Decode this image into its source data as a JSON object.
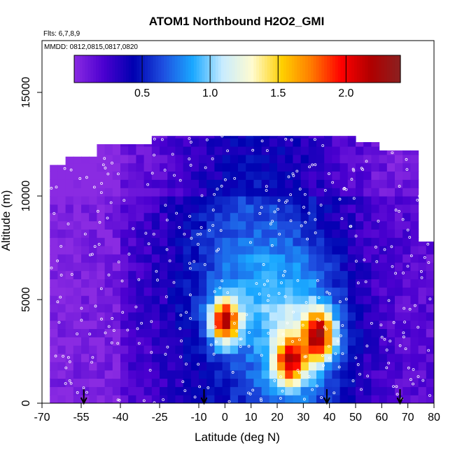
{
  "chart_data": {
    "type": "heatmap",
    "title": "ATOM1 Northbound H2O2_GMI",
    "subtitle": "Flts: 6,7,8,9",
    "annotation": "MMDD: 0812,0815,0817,0820",
    "xlabel": "Latitude (deg N)",
    "ylabel": "Altitude (m)",
    "xlim": [
      -70,
      80
    ],
    "ylim": [
      0,
      17500
    ],
    "x_ticks": [
      -70,
      -55,
      -40,
      -25,
      -10,
      0,
      10,
      20,
      30,
      40,
      50,
      60,
      70,
      80
    ],
    "x_tick_labels": [
      "-70",
      "-55",
      "-40",
      "-25",
      "-10",
      "0",
      "10",
      "20",
      "30",
      "40",
      "50",
      "60",
      "70",
      "80"
    ],
    "y_ticks": [
      0,
      5000,
      10000,
      15000
    ],
    "y_tick_labels": [
      "0",
      "5000",
      "10000",
      "15000"
    ],
    "colorbar": {
      "range": [
        0,
        2.4
      ],
      "ticks": [
        0.5,
        1.0,
        1.5,
        2.0
      ],
      "tick_labels": [
        "0.5",
        "1.0",
        "1.5",
        "2.0"
      ],
      "colors": [
        "#8a2be2",
        "#4b00d0",
        "#0000b0",
        "#1e4fe0",
        "#1aa8ff",
        "#c8ecff",
        "#fffbd0",
        "#ffd000",
        "#ff7b00",
        "#ff0000",
        "#b00000",
        "#8b2020"
      ]
    },
    "grid": false,
    "flight_legs_latitude": [
      -54,
      -8,
      39,
      67
    ],
    "hotspots": [
      {
        "lat": 0,
        "alt": 4000,
        "value": 2.2
      },
      {
        "lat": 36,
        "alt": 3300,
        "value": 2.1
      },
      {
        "lat": 25,
        "alt": 2000,
        "value": 1.9
      }
    ]
  }
}
